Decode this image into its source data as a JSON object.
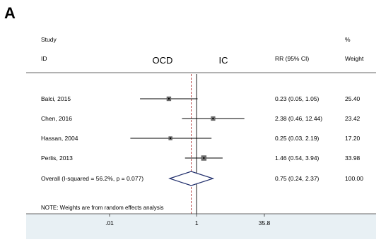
{
  "figure": {
    "panel_label": "A",
    "colors": {
      "background": "#e8f0f4",
      "panel": "#ffffff",
      "null_line": "#000000",
      "overall_line": "#b03030",
      "diamond": "#1f2d6b",
      "box": "#6e6e6e"
    }
  },
  "chart_data": {
    "type": "forest",
    "scale": "log",
    "headers": {
      "study_top": "Study",
      "study_bottom": "ID",
      "group_left": "OCD",
      "group_right": "IC",
      "effect": "RR (95% CI)",
      "weight_top": "%",
      "weight_bottom": "Weight"
    },
    "studies": [
      {
        "label": "Balci, 2015",
        "rr": 0.23,
        "lower": 0.05,
        "upper": 1.05,
        "ci_text": "0.23 (0.05, 1.05)",
        "weight": 25.4,
        "weight_text": "25.40"
      },
      {
        "label": "Chen, 2016",
        "rr": 2.38,
        "lower": 0.46,
        "upper": 12.44,
        "ci_text": "2.38 (0.46, 12.44)",
        "weight": 23.42,
        "weight_text": "23.42"
      },
      {
        "label": "Hassan, 2004",
        "rr": 0.25,
        "lower": 0.03,
        "upper": 2.19,
        "ci_text": "0.25 (0.03, 2.19)",
        "weight": 17.2,
        "weight_text": "17.20"
      },
      {
        "label": "Perlis, 2013",
        "rr": 1.46,
        "lower": 0.54,
        "upper": 3.94,
        "ci_text": "1.46 (0.54, 3.94)",
        "weight": 33.98,
        "weight_text": "33.98"
      }
    ],
    "overall": {
      "label": "Overall  (I-squared = 56.2%, p = 0.077)",
      "rr": 0.75,
      "lower": 0.24,
      "upper": 2.37,
      "ci_text": "0.75 (0.24, 2.37)",
      "weight_text": "100.00"
    },
    "note": "NOTE: Weights are from random effects analysis",
    "x_ticks": [
      {
        "value": 0.01,
        "label": ".01"
      },
      {
        "value": 1,
        "label": "1"
      },
      {
        "value": 35.8,
        "label": "35.8"
      }
    ],
    "null_value": 1,
    "xlim": [
      0.01,
      35.8
    ]
  }
}
